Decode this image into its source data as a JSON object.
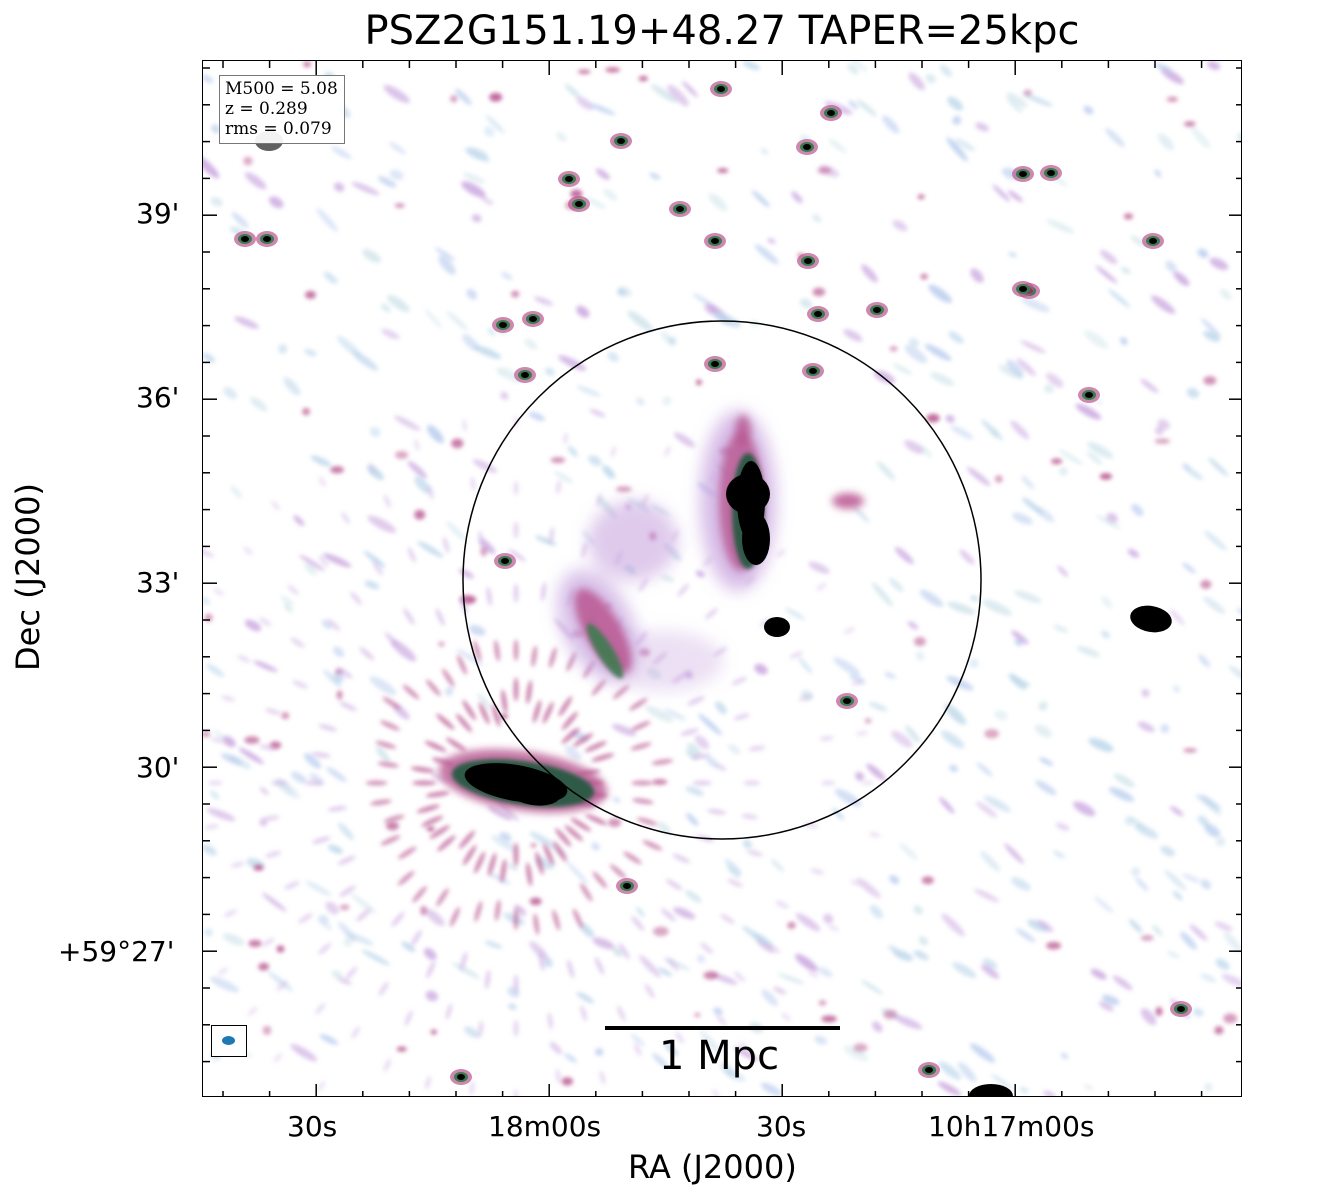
{
  "title": "PSZ2G151.19+48.27 TAPER=25kpc",
  "axes": {
    "xlabel": "RA (J2000)",
    "ylabel": "Dec (J2000)",
    "x_ticks": [
      "30s",
      "18m00s",
      "30s",
      "10h17m00s"
    ],
    "y_ticks": [
      "39'",
      "36'",
      "33'",
      "30'",
      "+59°27'"
    ]
  },
  "info": {
    "m500": "M500 = 5.08",
    "z": "z = 0.289",
    "rms": "rms = 0.079"
  },
  "scalebar": {
    "label": "1 Mpc"
  },
  "colors": {
    "circle": "#000000",
    "beam": "#1f77b4",
    "noise_light": "#bcd6ea",
    "noise_mid": "#c9a6df",
    "emission": "#b8568f",
    "core": "#3d7a4f"
  },
  "image_description": {
    "colormap": "cubehelix-like (white → blue → purple → pink → green → black)",
    "features": [
      "compact point sources",
      "extended diffuse emission in circle",
      "bright source lower-left with radial artefacts"
    ]
  }
}
